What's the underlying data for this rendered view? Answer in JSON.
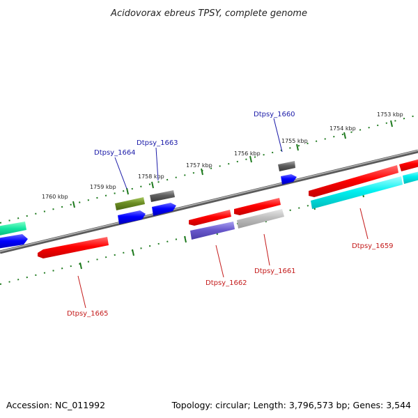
{
  "title": "Acidovorax ebreus TPSY, complete genome",
  "footer": {
    "accession": "Accession: NC_011992",
    "summary": "Topology: circular; Length: 3,796,573 bp; Genes: 3,544"
  },
  "colors": {
    "backbone": "#8a8a8a",
    "ticks": "#1e7a1e",
    "label_top": "#1a1aa8",
    "label_bottom": "#c41a1a"
  },
  "kbp_labels": [
    "1760 kbp",
    "1759 kbp",
    "1758 kbp",
    "1757 kbp",
    "1756 kbp",
    "1755 kbp",
    "1754 kbp",
    "1753 kbp"
  ],
  "gene_labels": {
    "top": [
      "Dtpsy_1664",
      "Dtpsy_1663",
      "Dtpsy_1660"
    ],
    "bottom": [
      "Dtpsy_1665",
      "Dtpsy_1662",
      "Dtpsy_1661",
      "Dtpsy_1659"
    ]
  }
}
